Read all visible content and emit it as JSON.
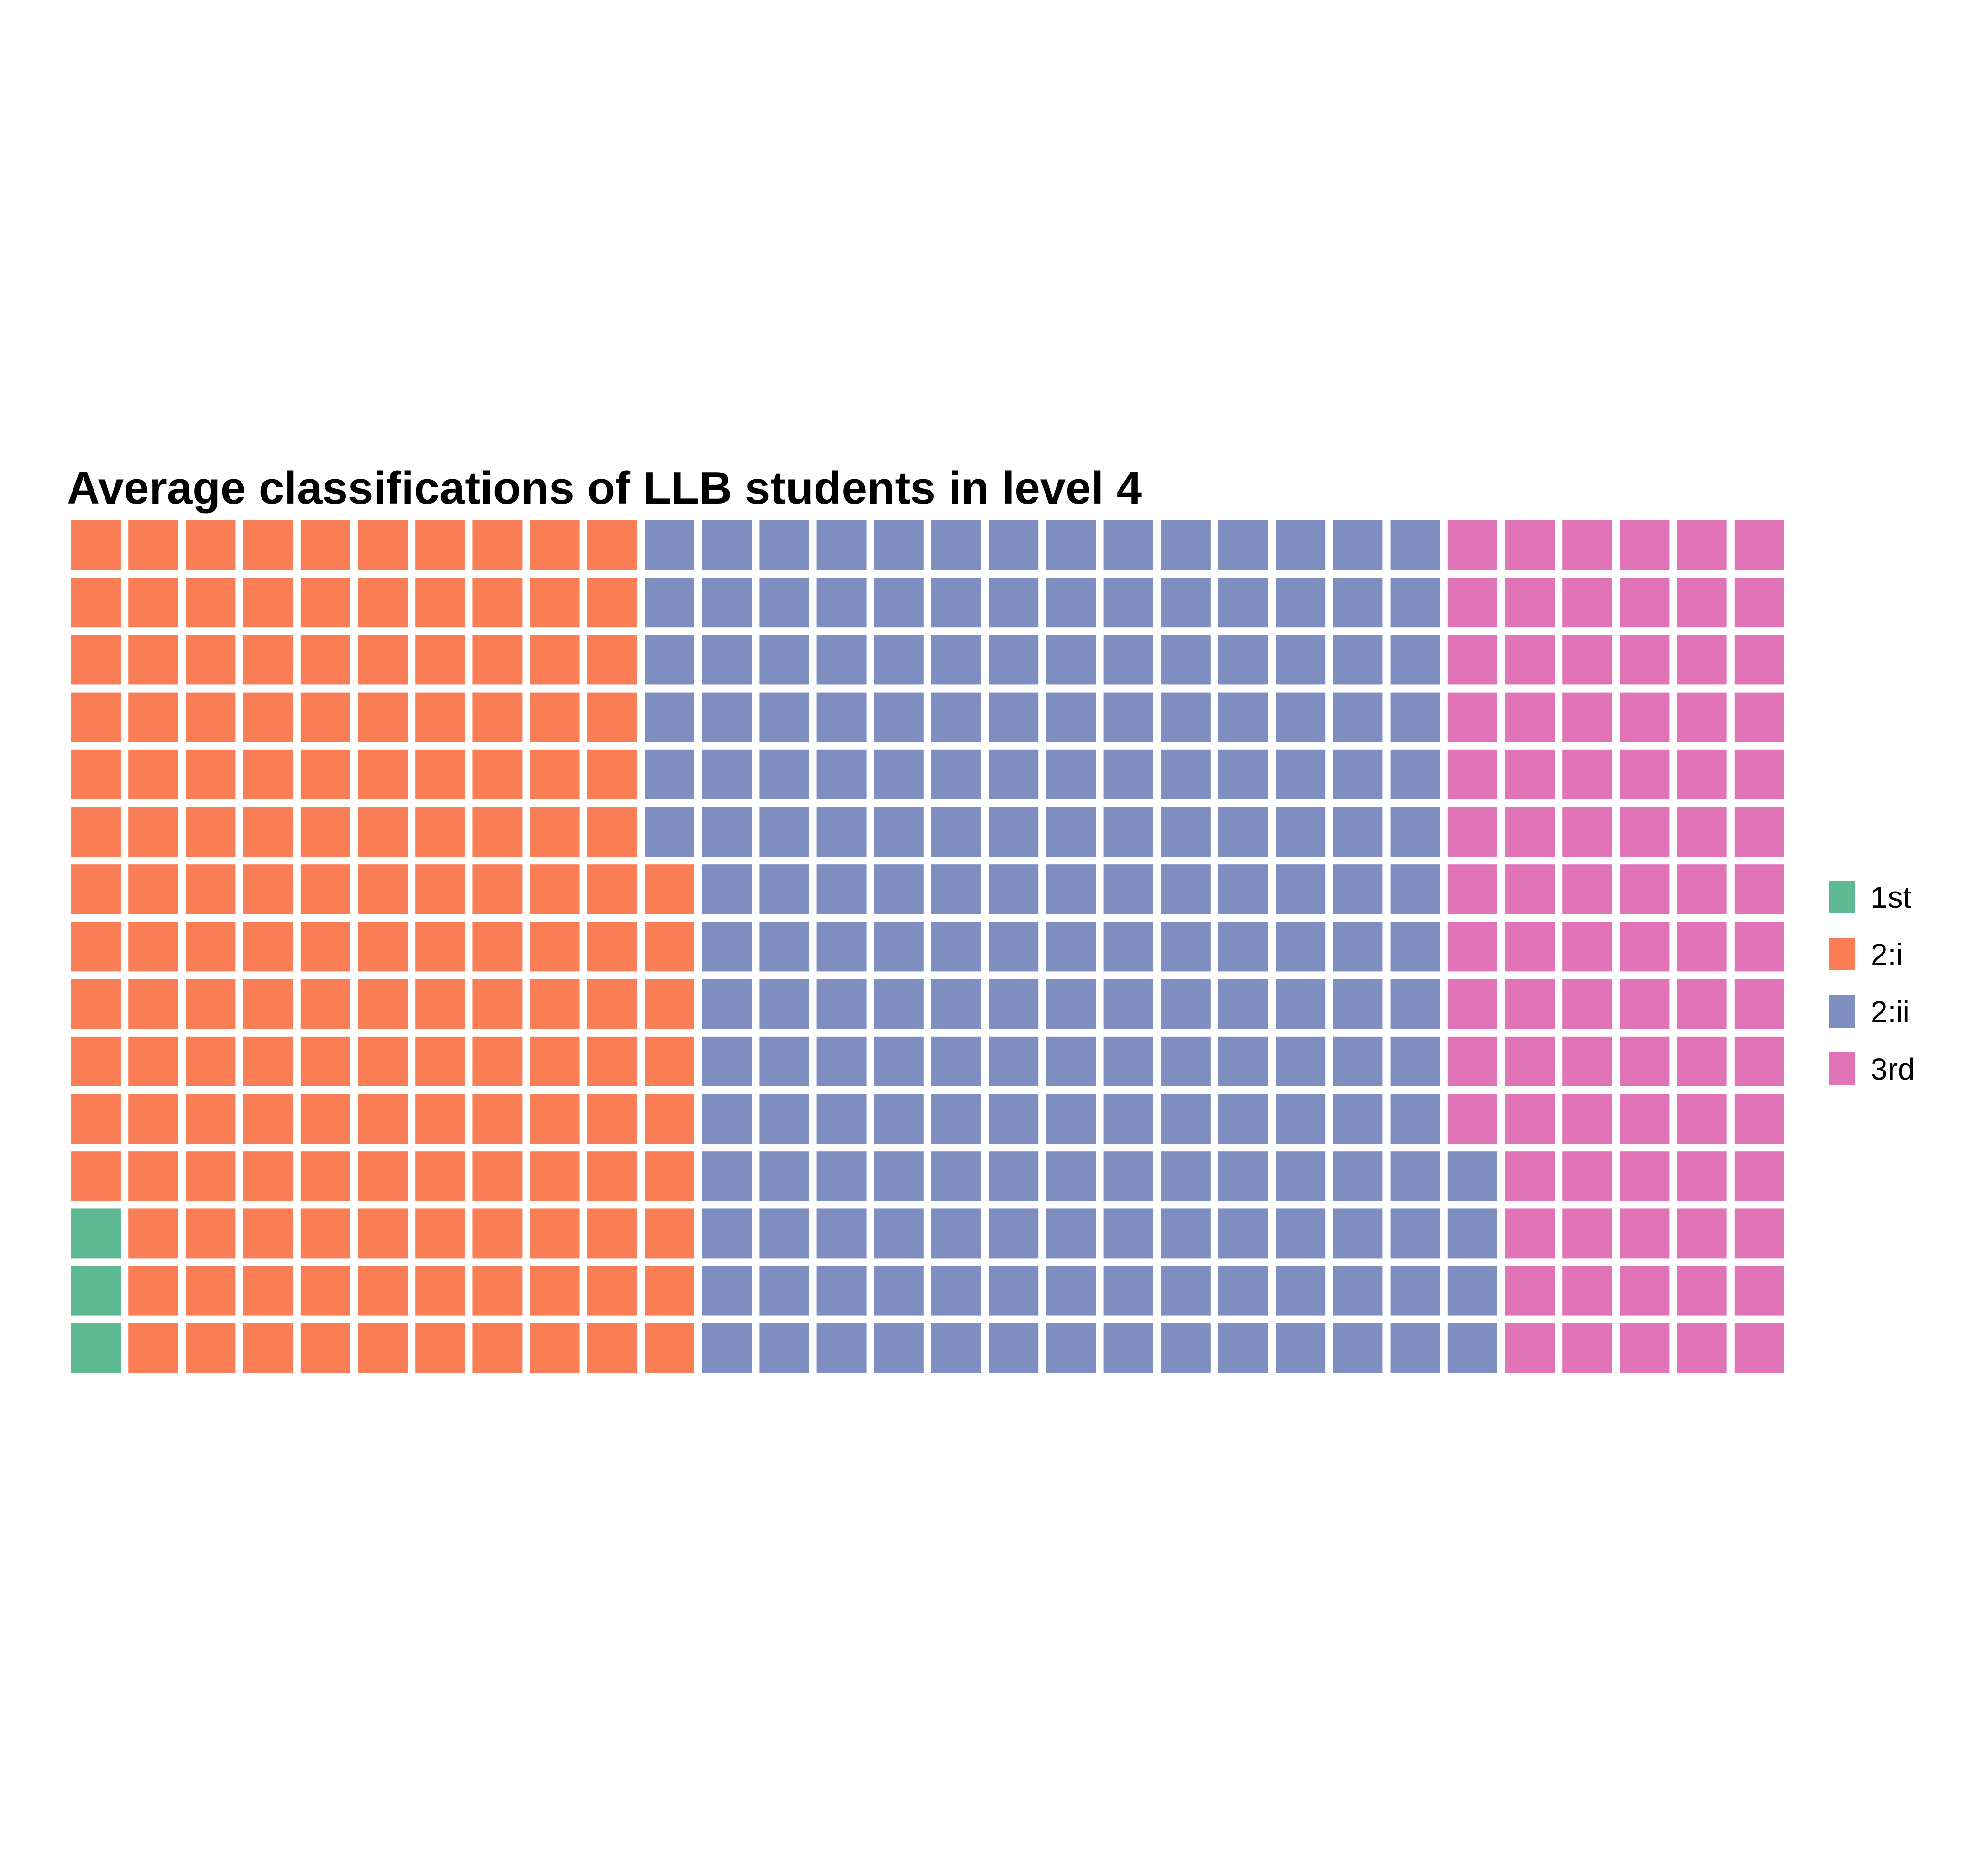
{
  "chart_data": {
    "type": "waffle",
    "title": "Average classifications of LLB students in level 4",
    "grid": {
      "rows": 15,
      "columns": 30
    },
    "fill_order": "column-major, bottom-to-top, left-to-right",
    "categories": [
      "1st",
      "2:i",
      "2:ii",
      "3rd"
    ],
    "values": [
      3,
      156,
      205,
      86
    ],
    "colors": {
      "1st": "#5DB991",
      "2:i": "#F97D55",
      "2:ii": "#7E8EC0",
      "3rd": "#E174B7"
    },
    "legend": {
      "position": "right",
      "entries": [
        "1st",
        "2:i",
        "2:ii",
        "3rd"
      ]
    },
    "xlabel": "",
    "ylabel": ""
  }
}
